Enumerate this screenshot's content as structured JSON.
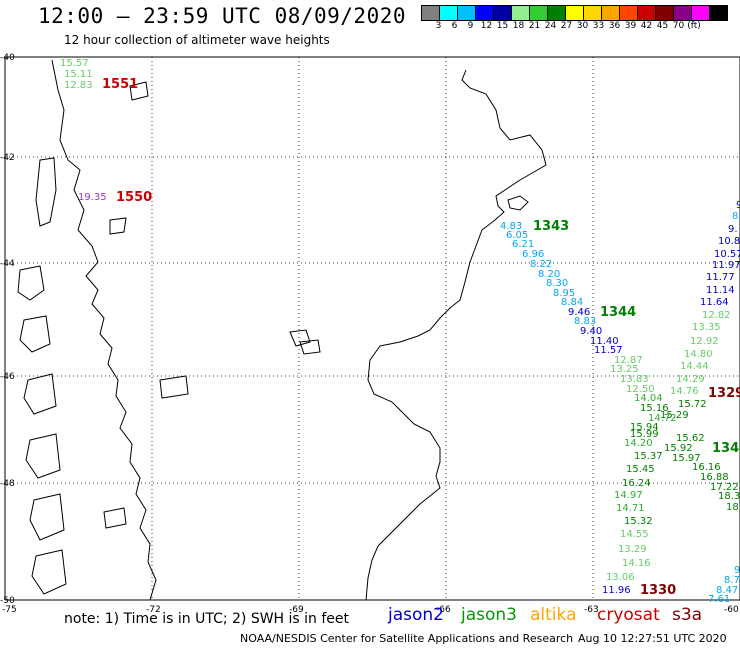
{
  "header": {
    "title": "12:00 — 23:59 UTC 08/09/2020",
    "subtitle": "12 hour collection of altimeter wave heights"
  },
  "scale": {
    "unit": "(ft)",
    "colors": [
      "#808080",
      "#00ffff",
      "#00bfff",
      "#0000ff",
      "#0000a0",
      "#90ee90",
      "#32cd32",
      "#008000",
      "#ffff00",
      "#ffd700",
      "#ffa500",
      "#ff4500",
      "#cc0000",
      "#800000",
      "#8b008b",
      "#ff00ff",
      "#000000"
    ],
    "labels": [
      "3",
      "6",
      "9",
      "12",
      "15",
      "18",
      "21",
      "24",
      "27",
      "30",
      "33",
      "36",
      "39",
      "42",
      "45",
      "70"
    ]
  },
  "axes": {
    "lon_labels": [
      "-75",
      "-72",
      "-69",
      "-66",
      "-63",
      "-60"
    ],
    "lat_labels": [
      "-40",
      "-42",
      "-44",
      "-46",
      "-48",
      "-50"
    ]
  },
  "passes": [
    {
      "id": "1551",
      "color": "#cc0000"
    },
    {
      "id": "1550",
      "color": "#cc0000"
    },
    {
      "id": "1343",
      "color": "#008000"
    },
    {
      "id": "1344",
      "color": "#008000"
    },
    {
      "id": "1329",
      "color": "#800000"
    },
    {
      "id": "134",
      "color": "#008000"
    },
    {
      "id": "1330",
      "color": "#800000"
    }
  ],
  "observations": [
    {
      "v": "15.57",
      "c": "#66cc66"
    },
    {
      "v": "15.11",
      "c": "#66cc66"
    },
    {
      "v": "12.83",
      "c": "#66cc66"
    },
    {
      "v": "19.35",
      "c": "#9933cc"
    },
    {
      "v": "4.83",
      "c": "#00aaee"
    },
    {
      "v": "6.05",
      "c": "#00aaee"
    },
    {
      "v": "6.21",
      "c": "#00aaee"
    },
    {
      "v": "6.96",
      "c": "#00aaee"
    },
    {
      "v": "8.22",
      "c": "#00aaee"
    },
    {
      "v": "8.20",
      "c": "#00aaee"
    },
    {
      "v": "8.30",
      "c": "#00aaee"
    },
    {
      "v": "8.95",
      "c": "#00aaee"
    },
    {
      "v": "8.84",
      "c": "#00aaee"
    },
    {
      "v": "9.46",
      "c": "#0000cc"
    },
    {
      "v": "8.83",
      "c": "#00aaee"
    },
    {
      "v": "9.40",
      "c": "#0000cc"
    },
    {
      "v": "11.40",
      "c": "#0000cc"
    },
    {
      "v": "11.57",
      "c": "#0000cc"
    },
    {
      "v": "12.87",
      "c": "#66cc66"
    },
    {
      "v": "13.25",
      "c": "#66cc66"
    },
    {
      "v": "13.83",
      "c": "#66cc66"
    },
    {
      "v": "12.50",
      "c": "#66cc66"
    },
    {
      "v": "14.04",
      "c": "#33aa33"
    },
    {
      "v": "15.16",
      "c": "#008000"
    },
    {
      "v": "14.72",
      "c": "#33aa33"
    },
    {
      "v": "15.94",
      "c": "#008000"
    },
    {
      "v": "15.99",
      "c": "#008000"
    },
    {
      "v": "14.20",
      "c": "#33aa33"
    },
    {
      "v": "15.37",
      "c": "#008000"
    },
    {
      "v": "15.45",
      "c": "#008000"
    },
    {
      "v": "16.24",
      "c": "#008000"
    },
    {
      "v": "14.97",
      "c": "#33aa33"
    },
    {
      "v": "14.71",
      "c": "#33aa33"
    },
    {
      "v": "15.32",
      "c": "#008000"
    },
    {
      "v": "14.55",
      "c": "#66cc66"
    },
    {
      "v": "13.29",
      "c": "#66cc66"
    },
    {
      "v": "14.16",
      "c": "#66cc66"
    },
    {
      "v": "13.06",
      "c": "#66cc66"
    },
    {
      "v": "11.96",
      "c": "#0000cc"
    },
    {
      "v": "12.82",
      "c": "#66cc66"
    },
    {
      "v": "13.35",
      "c": "#66cc66"
    },
    {
      "v": "12.92",
      "c": "#66cc66"
    },
    {
      "v": "14.80",
      "c": "#66cc66"
    },
    {
      "v": "14.44",
      "c": "#66cc66"
    },
    {
      "v": "14.29",
      "c": "#66cc66"
    },
    {
      "v": "14.76",
      "c": "#66cc66"
    },
    {
      "v": "15.72",
      "c": "#008000"
    },
    {
      "v": "15.29",
      "c": "#008000"
    },
    {
      "v": "15.62",
      "c": "#008000"
    },
    {
      "v": "15.92",
      "c": "#008000"
    },
    {
      "v": "15.97",
      "c": "#008000"
    },
    {
      "v": "16.16",
      "c": "#008000"
    },
    {
      "v": "16.88",
      "c": "#008000"
    },
    {
      "v": "17.22",
      "c": "#008000"
    },
    {
      "v": "18.3",
      "c": "#008000"
    },
    {
      "v": "18.",
      "c": "#008000"
    },
    {
      "v": "9",
      "c": "#0000cc"
    },
    {
      "v": "8",
      "c": "#00aaee"
    },
    {
      "v": "9.",
      "c": "#0000cc"
    },
    {
      "v": "10.8",
      "c": "#0000cc"
    },
    {
      "v": "10.57",
      "c": "#0000cc"
    },
    {
      "v": "11.97",
      "c": "#0000cc"
    },
    {
      "v": "11.77",
      "c": "#0000cc"
    },
    {
      "v": "11.14",
      "c": "#0000cc"
    },
    {
      "v": "11.64",
      "c": "#0000cc"
    },
    {
      "v": "9",
      "c": "#00aaee"
    },
    {
      "v": "8.7",
      "c": "#00aaee"
    },
    {
      "v": "8.47",
      "c": "#00aaee"
    },
    {
      "v": "7.61",
      "c": "#00aaee"
    }
  ],
  "note": "note: 1) Time is in UTC; 2) SWH is in feet",
  "legend": [
    {
      "label": "jason2",
      "color": "#0000cc"
    },
    {
      "label": "jason3",
      "color": "#009900"
    },
    {
      "label": "altika",
      "color": "#ffa500"
    },
    {
      "label": "cryosat",
      "color": "#cc0000"
    },
    {
      "label": "s3a",
      "color": "#800000"
    }
  ],
  "footer": {
    "credit": "NOAA/NESDIS Center for Satellite Applications and Research",
    "timestamp": "Aug 10 12:27:51 UTC 2020"
  }
}
